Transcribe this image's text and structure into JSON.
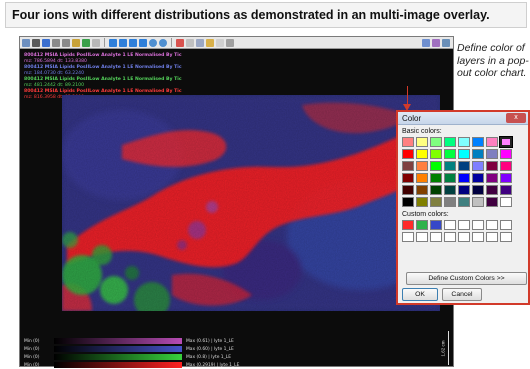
{
  "headline": "Four ions with different distributions as demonstrated in an multi-image overlay.",
  "note": "Define color of layers in a pop-out color chart.",
  "viewer": {
    "toolbar_left_icons": [
      "select-icon",
      "hand-icon",
      "pointer-icon",
      "zoom-in-icon",
      "zoom-out-icon",
      "home-icon",
      "histogram-icon",
      "grid-icon",
      "arrow-left-icon",
      "arrow-right-icon",
      "arrow-up-icon",
      "arrow-down-icon",
      "rotate-cw-icon",
      "rotate-ccw-icon",
      "ruler-icon",
      "line-icon",
      "freehand-icon",
      "brush-icon",
      "eraser-icon",
      "export-icon"
    ],
    "toolbar_right_icons": [
      "layers-icon",
      "settings-icon",
      "window-icon"
    ],
    "ion_labels": [
      {
        "text": "800412 MSIA Lipids PosIILow Analyte 1 LE Normalised By Tic",
        "sub": "mz: 786.5894 dt: 133.8380",
        "color": "#d970d9"
      },
      {
        "text": "800412 MSIA Lipids PosIILow Analyte 1 LE Normalised By Tic",
        "sub": "mz: 184.0730 dt: 63.2240",
        "color": "#6f7fe8"
      },
      {
        "text": "800412 MSIA Lipids PosIILow Analyte 1 LE Normalised By Tic",
        "sub": "mz: 481.2442 dt: 89.2100",
        "color": "#54d25a"
      },
      {
        "text": "800412 MSIA Lipids PosIILow Analyte 1 LE Normalised By Tic",
        "sub": "mz: 816.3958 dt: 95.2000",
        "color": "#ff3b3b"
      }
    ],
    "color_bars": [
      {
        "min": "Min (0)",
        "max": "Max (0.61) | lyte 1_LE",
        "color": "#b74cb4"
      },
      {
        "min": "Min (0)",
        "max": "Max (0.60) | lyte 1_LE",
        "color": "#4552c8"
      },
      {
        "min": "Min (0)",
        "max": "Max (0.8) | lyte 1_LE",
        "color": "#37d13c"
      },
      {
        "min": "Min (0)",
        "max": "Max (0.2919) | lyte 1_LE",
        "color": "#ff2323"
      }
    ],
    "scale_label": "1.62 cm"
  },
  "dialog": {
    "title": "Color",
    "close_symbol": "x",
    "basic_label": "Basic colors:",
    "basic_colors": [
      "#ff8080",
      "#ffff80",
      "#80ff80",
      "#00ff80",
      "#80ffff",
      "#0080ff",
      "#ff80c0",
      "#ff80ff",
      "#ff0000",
      "#ffff00",
      "#80ff00",
      "#00ff40",
      "#00ffff",
      "#0080c0",
      "#8080c0",
      "#ff00ff",
      "#804040",
      "#ff8040",
      "#00ff00",
      "#008080",
      "#004080",
      "#8080ff",
      "#800040",
      "#ff0080",
      "#800000",
      "#ff8000",
      "#008000",
      "#008040",
      "#0000ff",
      "#0000a0",
      "#800080",
      "#8000ff",
      "#400000",
      "#804000",
      "#004000",
      "#004040",
      "#000080",
      "#000040",
      "#400040",
      "#400080",
      "#000000",
      "#808000",
      "#808040",
      "#808080",
      "#408080",
      "#c0c0c0",
      "#400040",
      "#ffffff"
    ],
    "selected_index": 7,
    "custom_label": "Custom colors:",
    "custom_colors": [
      "#ff2a2a",
      "#2fb24a",
      "#3548c8",
      "#ffffff",
      "#ffffff",
      "#ffffff",
      "#ffffff",
      "#ffffff",
      "#ffffff",
      "#ffffff",
      "#ffffff",
      "#ffffff",
      "#ffffff",
      "#ffffff",
      "#ffffff",
      "#ffffff"
    ],
    "define_custom_label": "Define Custom Colors >>",
    "ok_label": "OK",
    "cancel_label": "Cancel"
  },
  "colors": {
    "accent": "#d23a2a"
  }
}
